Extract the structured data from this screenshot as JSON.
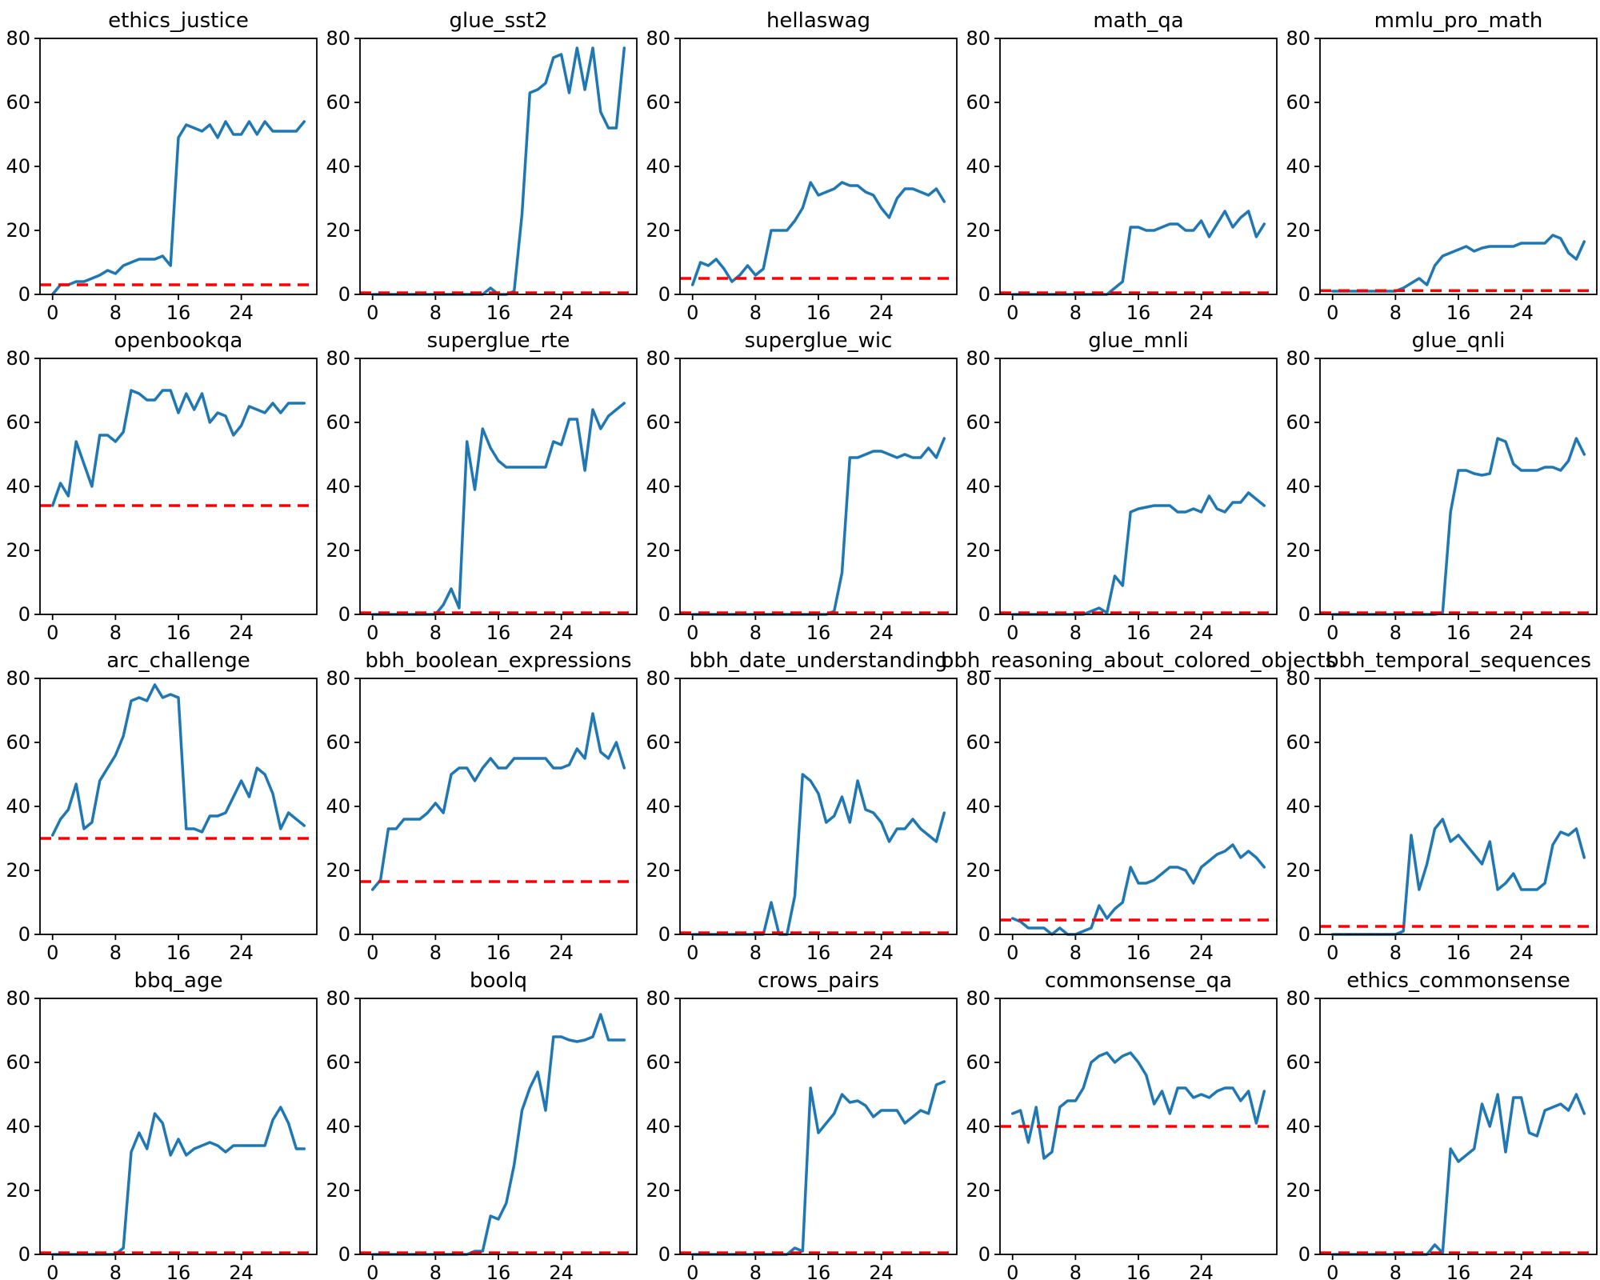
{
  "figure": {
    "kind": "benchmark-metrics-grid",
    "rows": 4,
    "cols": 5,
    "colors": {
      "background": "#ffffff",
      "metric_line": "#1f77b4",
      "baseline_line": "#ff0000",
      "axis": "#000000"
    },
    "axes": {
      "ylim": [
        0,
        80
      ],
      "yticks": [
        0,
        20,
        40,
        60,
        80
      ],
      "xticks": [
        0,
        8,
        16,
        24
      ],
      "x_start": 0,
      "x_end": 32,
      "grid": false,
      "legend": "none"
    }
  },
  "chart_data": [
    {
      "type": "line",
      "title": "ethics_justice",
      "baseline": 3,
      "values": [
        0,
        3,
        3,
        4,
        4,
        5,
        6,
        7.5,
        6.5,
        9,
        10,
        11,
        11,
        11,
        12,
        9,
        49,
        53,
        52,
        51,
        53,
        49,
        54,
        50,
        50,
        54,
        50,
        54,
        51,
        51,
        51,
        51,
        54
      ]
    },
    {
      "type": "line",
      "title": "glue_sst2",
      "baseline": 0.5,
      "values": [
        0,
        0,
        0,
        0,
        0,
        0,
        0,
        0,
        0,
        0,
        0,
        0,
        0,
        0,
        0,
        2,
        0,
        0,
        1,
        25,
        63,
        64,
        66,
        74,
        75,
        63,
        77,
        64,
        77,
        57,
        52,
        52,
        77
      ]
    },
    {
      "type": "line",
      "title": "hellaswag",
      "baseline": 5,
      "values": [
        3,
        10,
        9,
        11,
        8,
        4,
        6,
        9,
        6,
        8,
        20,
        20,
        20,
        23,
        27,
        35,
        31,
        32,
        33,
        35,
        34,
        34,
        32,
        31,
        27,
        24,
        30,
        33,
        33,
        32,
        31,
        33,
        29
      ]
    },
    {
      "type": "line",
      "title": "math_qa",
      "baseline": 0.5,
      "values": [
        0,
        0,
        0,
        0,
        0,
        0,
        0,
        0,
        0,
        0,
        0,
        0,
        0,
        2,
        4,
        21,
        21,
        20,
        20,
        21,
        22,
        22,
        20,
        20,
        23,
        18,
        22,
        26,
        21,
        24,
        26,
        18,
        22
      ]
    },
    {
      "type": "line",
      "title": "mmlu_pro_math",
      "baseline": 1.2,
      "values": [
        1,
        1,
        1,
        1,
        1,
        1,
        1,
        1,
        1,
        2,
        3.5,
        5,
        3,
        9,
        12,
        13,
        14,
        15,
        13.5,
        14.5,
        15,
        15,
        15,
        15,
        16,
        16,
        16,
        16,
        18.5,
        17.5,
        13,
        11,
        16.5
      ]
    },
    {
      "type": "line",
      "title": "openbookqa",
      "baseline": 34,
      "values": [
        34,
        41,
        37,
        54,
        47,
        40,
        56,
        56,
        54,
        57,
        70,
        69,
        67,
        67,
        70,
        70,
        63,
        69,
        64,
        69,
        60,
        63,
        62,
        56,
        59,
        65,
        64,
        63,
        66,
        63,
        66,
        66,
        66
      ]
    },
    {
      "type": "line",
      "title": "superglue_rte",
      "baseline": 0.5,
      "values": [
        0,
        0,
        0,
        0,
        0,
        0,
        0,
        0,
        0,
        3,
        8,
        2,
        54,
        39,
        58,
        52,
        48,
        46,
        46,
        46,
        46,
        46,
        46,
        54,
        53,
        61,
        61,
        45,
        64,
        58,
        62,
        64,
        66
      ]
    },
    {
      "type": "line",
      "title": "superglue_wic",
      "baseline": 0.5,
      "values": [
        0,
        0,
        0,
        0,
        0,
        0,
        0,
        0,
        0,
        0,
        0,
        0,
        0,
        0,
        0,
        0,
        0,
        0,
        1,
        13,
        49,
        49,
        50,
        51,
        51,
        50,
        49,
        50,
        49,
        49,
        52,
        49,
        55
      ]
    },
    {
      "type": "line",
      "title": "glue_mnli",
      "baseline": 0.5,
      "values": [
        0,
        0,
        0,
        0,
        0,
        0,
        0,
        0,
        0,
        0,
        1,
        2,
        0.5,
        12,
        9,
        32,
        33,
        33.5,
        34,
        34,
        34,
        32,
        32,
        33,
        32,
        37,
        33,
        32,
        35,
        35,
        38,
        36,
        34
      ]
    },
    {
      "type": "line",
      "title": "glue_qnli",
      "baseline": 0.5,
      "values": [
        0,
        0,
        0,
        0,
        0,
        0,
        0,
        0,
        0,
        0,
        0,
        0,
        0,
        0,
        0.5,
        32,
        45,
        45,
        44,
        43.5,
        44,
        55,
        54,
        47,
        45,
        45,
        45,
        46,
        46,
        45,
        48,
        55,
        50
      ]
    },
    {
      "type": "line",
      "title": "arc_challenge",
      "baseline": 30,
      "values": [
        31,
        36,
        39,
        47,
        33,
        35,
        48,
        52,
        56,
        62,
        73,
        74,
        73,
        78,
        74,
        75,
        74,
        33,
        33,
        32,
        37,
        37,
        38,
        43,
        48,
        43,
        52,
        50,
        44,
        33,
        38,
        36,
        34
      ]
    },
    {
      "type": "line",
      "title": "bbh_boolean_expressions",
      "baseline": 16.5,
      "values": [
        14,
        17,
        33,
        33,
        36,
        36,
        36,
        38,
        41,
        38,
        50,
        52,
        52,
        48,
        52,
        55,
        52,
        52,
        55,
        55,
        55,
        55,
        55,
        52,
        52,
        53,
        58,
        55,
        69,
        57,
        55,
        60,
        52
      ]
    },
    {
      "type": "line",
      "title": "bbh_date_understanding",
      "baseline": 0.5,
      "values": [
        0,
        0,
        0,
        0,
        0,
        0,
        0,
        0,
        0,
        0,
        10,
        0,
        0,
        12,
        50,
        48,
        44,
        35,
        37,
        43,
        35,
        48,
        39,
        38,
        35,
        29,
        33,
        33,
        36,
        33,
        31,
        29,
        38
      ]
    },
    {
      "type": "line",
      "title": "bbh_reasoning_about_colored_objects",
      "baseline": 4.5,
      "values": [
        5,
        4,
        2,
        2,
        2,
        0,
        2,
        0,
        0,
        1,
        2,
        9,
        5,
        8,
        10,
        21,
        16,
        16,
        17,
        19,
        21,
        21,
        20,
        16,
        21,
        23,
        25,
        26,
        28,
        24,
        26,
        24,
        21
      ]
    },
    {
      "type": "line",
      "title": "bbh_temporal_sequences",
      "baseline": 2.5,
      "values": [
        0,
        0,
        0,
        0,
        0,
        0,
        0,
        0,
        0,
        1,
        31,
        14,
        22,
        33,
        36,
        29,
        31,
        28,
        25,
        22,
        29,
        14,
        16,
        19,
        14,
        14,
        14,
        16,
        28,
        32,
        31,
        33,
        24
      ]
    },
    {
      "type": "line",
      "title": "bbq_age",
      "baseline": 0.5,
      "values": [
        0,
        0,
        0,
        0,
        0,
        0,
        0,
        0,
        0,
        2,
        32,
        38,
        33,
        44,
        41,
        31,
        36,
        31,
        33,
        34,
        35,
        34,
        32,
        34,
        34,
        34,
        34,
        34,
        42,
        46,
        41,
        33,
        33
      ]
    },
    {
      "type": "line",
      "title": "boolq",
      "baseline": 0.5,
      "values": [
        0,
        0,
        0,
        0,
        0,
        0,
        0,
        0,
        0,
        0,
        0,
        0,
        0,
        1,
        1,
        12,
        11,
        16,
        28,
        45,
        52,
        57,
        45,
        68,
        68,
        67,
        66.5,
        67,
        68,
        75,
        67,
        67,
        67
      ]
    },
    {
      "type": "line",
      "title": "crows_pairs",
      "baseline": 0.5,
      "values": [
        0,
        0,
        0,
        0,
        0,
        0,
        0,
        0,
        0,
        0,
        0,
        0,
        0,
        2,
        1,
        52,
        38,
        41,
        44,
        50,
        47.5,
        48,
        46.5,
        43,
        45,
        45,
        45,
        41,
        43,
        45,
        44,
        53,
        54
      ]
    },
    {
      "type": "line",
      "title": "commonsense_qa",
      "baseline": 40,
      "values": [
        44,
        45,
        35,
        46,
        30,
        32,
        46,
        48,
        48,
        52,
        60,
        62,
        63,
        60,
        62,
        63,
        60,
        56,
        47,
        51,
        44,
        52,
        52,
        49,
        50,
        49,
        51,
        52,
        52,
        48,
        51,
        41,
        51
      ]
    },
    {
      "type": "line",
      "title": "ethics_commonsense",
      "baseline": 0.5,
      "values": [
        0,
        0,
        0,
        0,
        0,
        0,
        0,
        0,
        0,
        0,
        0,
        0,
        0,
        3,
        0.5,
        33,
        29,
        31,
        33,
        47,
        40,
        50,
        32,
        49,
        49,
        38,
        37,
        45,
        46,
        47,
        45,
        50,
        44
      ]
    }
  ]
}
